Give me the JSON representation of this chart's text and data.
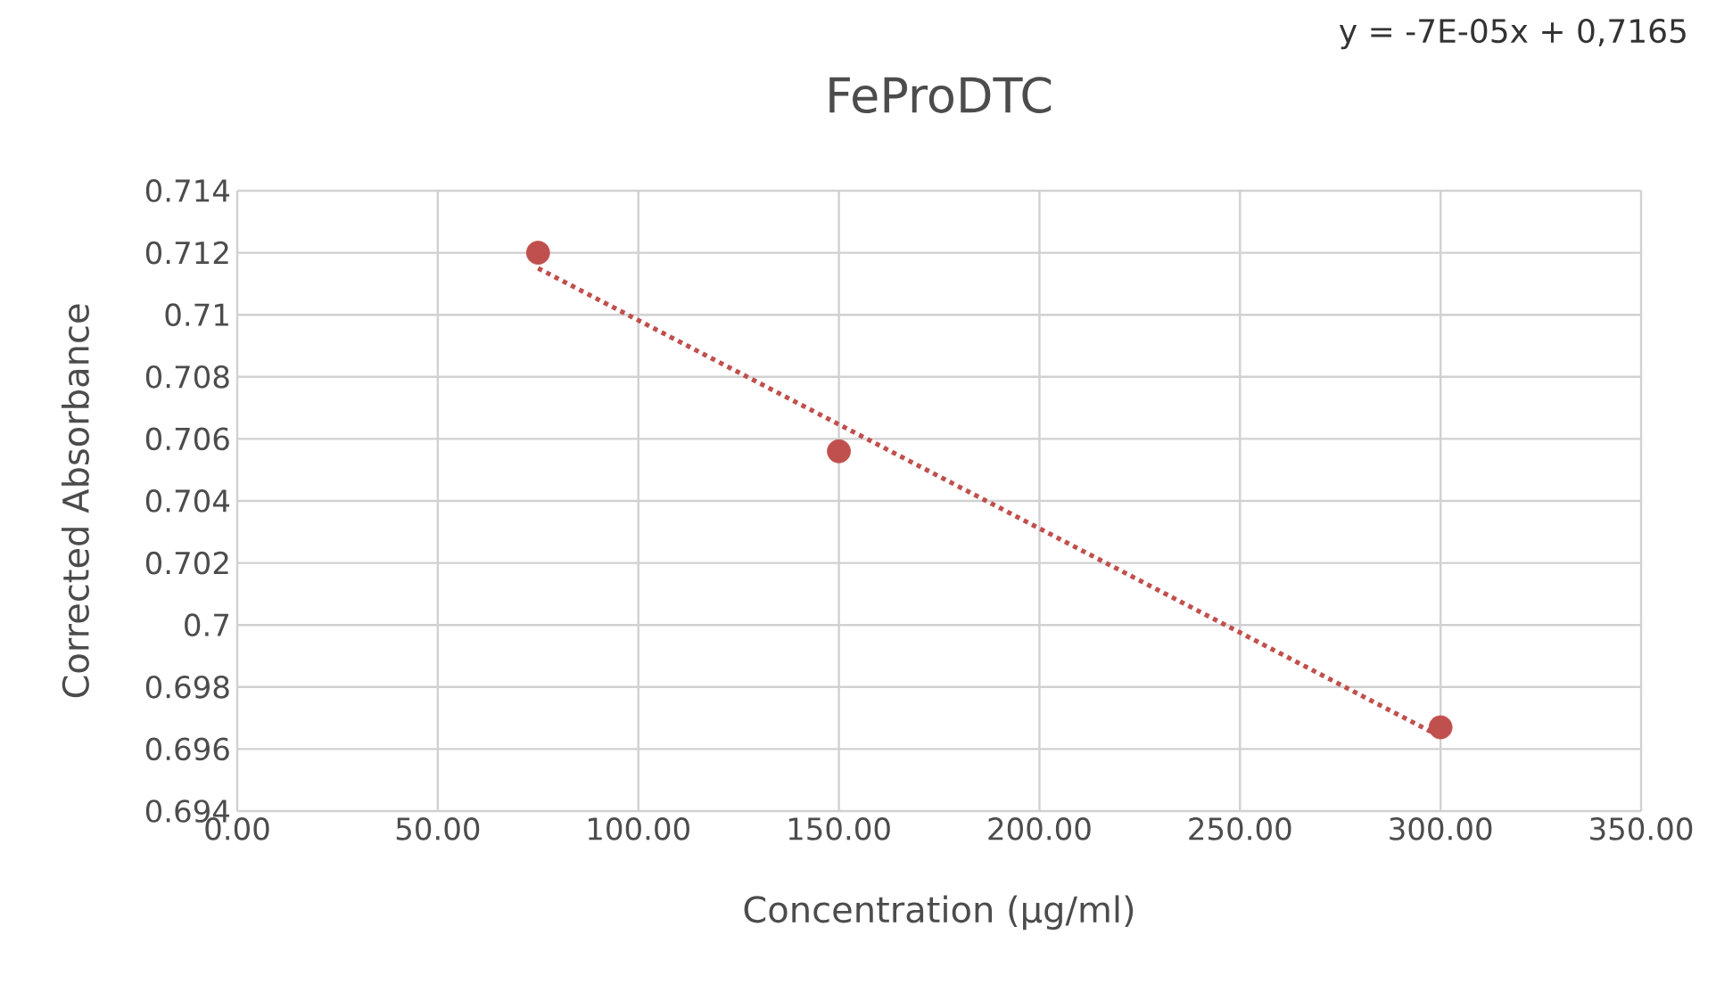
{
  "chart_data": {
    "type": "scatter",
    "title": "FeProDTC",
    "xlabel": "Concentration (µg/ml)",
    "ylabel": "Corrected Absorbance",
    "annotations": [
      "y = -7E-05x + 0,7165"
    ],
    "series": [
      {
        "color": "#c0504d",
        "marker": "circle",
        "x": [
          75,
          150,
          300
        ],
        "values": [
          0.712,
          0.7056,
          0.6967
        ]
      },
      {
        "type": "line",
        "color": "#c0504d",
        "line_style": "dotted",
        "x": [
          75,
          300
        ],
        "values": [
          0.7115,
          0.6964
        ]
      }
    ],
    "xlim": [
      0,
      350
    ],
    "xticks": [
      {
        "value": 0,
        "label": "0.00"
      },
      {
        "value": 50,
        "label": "50.00"
      },
      {
        "value": 100,
        "label": "100.00"
      },
      {
        "value": 150,
        "label": "150.00"
      },
      {
        "value": 200,
        "label": "200.00"
      },
      {
        "value": 250,
        "label": "250.00"
      },
      {
        "value": 300,
        "label": "300.00"
      },
      {
        "value": 350,
        "label": "350.00"
      }
    ],
    "ylim": [
      0.694,
      0.714
    ],
    "yticks": [
      0.694,
      0.696,
      0.698,
      0.7,
      0.702,
      0.704,
      0.706,
      0.708,
      0.71,
      0.712,
      0.714
    ],
    "grid": true
  }
}
